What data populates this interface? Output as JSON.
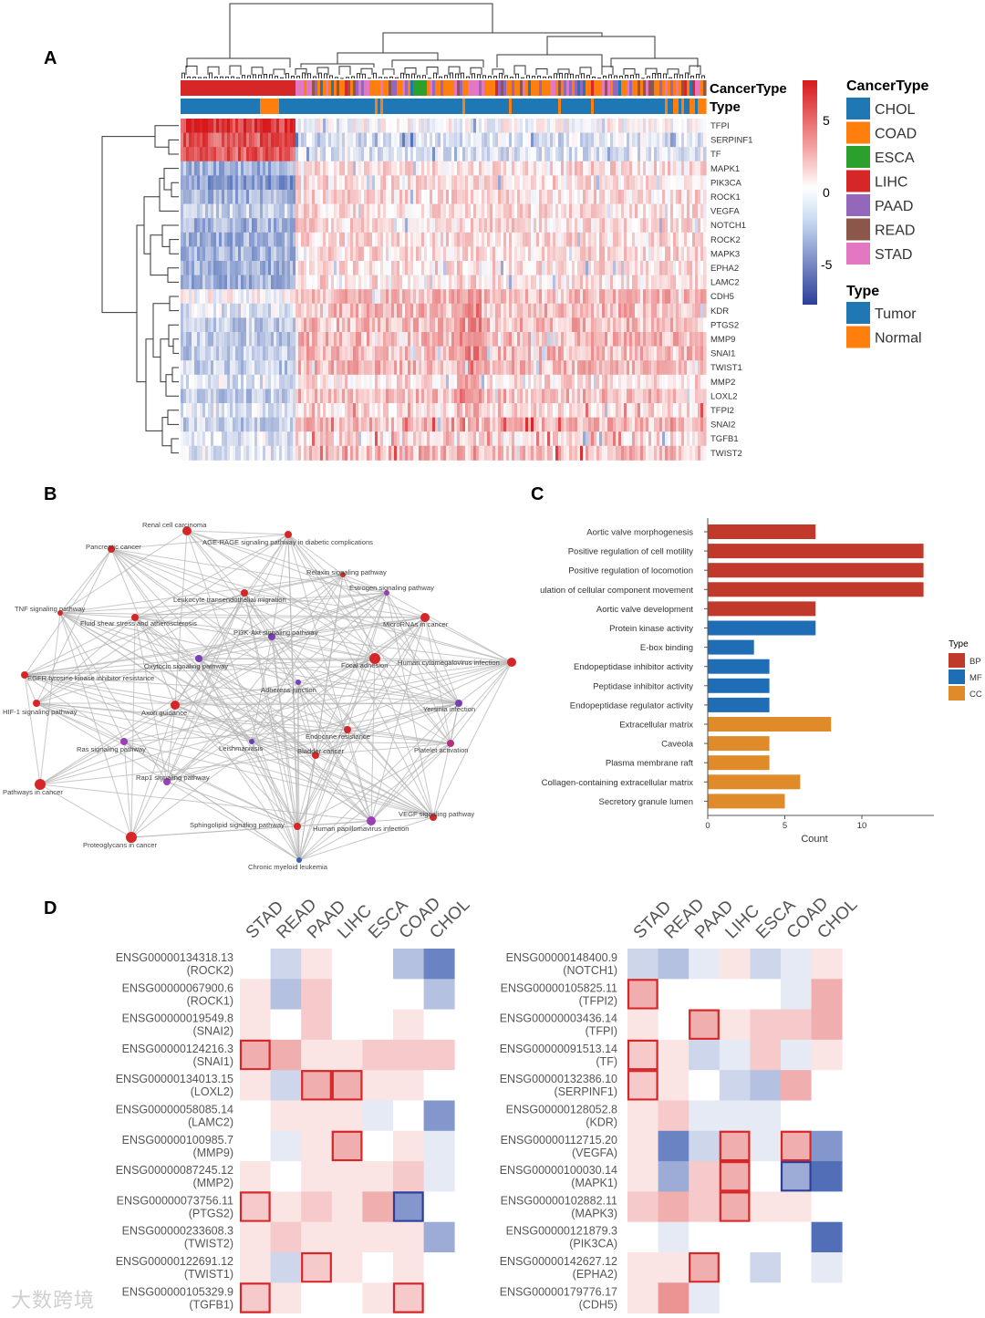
{
  "panels": {
    "A": "A",
    "B": "B",
    "C": "C",
    "D": "D"
  },
  "watermark": "大数跨境",
  "colors": {
    "CHOL": "#1f77b4",
    "COAD": "#ff7f0e",
    "ESCA": "#2ca02c",
    "LIHC": "#d62728",
    "PAAD": "#9467bd",
    "READ": "#8c564b",
    "STAD": "#e377c2",
    "Tumor": "#1f77b4",
    "Normal": "#ff7f0e",
    "BP": "#c0392b",
    "MF": "#1f6db5",
    "CC": "#e08b2a",
    "heat_high": "#d7191c",
    "heat_low": "#2c3e99",
    "edge": "#b5b5b5",
    "hl_red": "#d62728",
    "hl_blue": "#2c3e99"
  },
  "panelA": {
    "annotation_labels": [
      "CancerType",
      "Type"
    ],
    "genes": [
      "TFPI",
      "SERPINF1",
      "TF",
      "MAPK1",
      "PIK3CA",
      "ROCK1",
      "VEGFA",
      "NOTCH1",
      "ROCK2",
      "MAPK3",
      "EPHA2",
      "LAMC2",
      "CDH5",
      "KDR",
      "PTGS2",
      "MMP9",
      "SNAI1",
      "TWIST1",
      "MMP2",
      "LOXL2",
      "TFPI2",
      "SNAI2",
      "TGFB1",
      "TWIST2"
    ],
    "colorbar_ticks": [
      "5",
      "0",
      "-5"
    ],
    "legend_cancer_title": "CancerType",
    "legend_cancer": [
      "CHOL",
      "COAD",
      "ESCA",
      "LIHC",
      "PAAD",
      "READ",
      "STAD"
    ],
    "legend_type_title": "Type",
    "legend_type": [
      "Tumor",
      "Normal"
    ]
  },
  "panelB": {
    "nodes": [
      {
        "label": "Renal cell carcinoma",
        "color": "#d62728"
      },
      {
        "label": "AGE-RAGE signaling pathway in diabetic complications",
        "color": "#d62728"
      },
      {
        "label": "Pancreatic cancer",
        "color": "#d62728"
      },
      {
        "label": "Relaxin signaling pathway",
        "color": "#d62728"
      },
      {
        "label": "Estrogen signaling pathway",
        "color": "#9b3fb5"
      },
      {
        "label": "TNF signaling pathway",
        "color": "#d62728"
      },
      {
        "label": "Leukocyte transendothelial migration",
        "color": "#d62728"
      },
      {
        "label": "Fluid shear stress and atherosclerosis",
        "color": "#d62728"
      },
      {
        "label": "MicroRNAs in cancer",
        "color": "#d62728"
      },
      {
        "label": "PI3K-Akt signaling pathway",
        "color": "#7a3fb5"
      },
      {
        "label": "Oxytocin signaling pathway",
        "color": "#7a3fb5"
      },
      {
        "label": "Focal adhesion",
        "color": "#d62728"
      },
      {
        "label": "Human cytomegalovirus infection",
        "color": "#d62728"
      },
      {
        "label": "EGFR tyrosine kinase inhibitor resistance",
        "color": "#d62728"
      },
      {
        "label": "Adherens junction",
        "color": "#7a3fb5"
      },
      {
        "label": "HIF-1 signaling pathway",
        "color": "#d62728"
      },
      {
        "label": "Axon guidance",
        "color": "#d62728"
      },
      {
        "label": "Yersinia infection",
        "color": "#7a3fb5"
      },
      {
        "label": "Endocrine resistance",
        "color": "#d62728"
      },
      {
        "label": "Ras signaling pathway",
        "color": "#9b3fb5"
      },
      {
        "label": "Leishmaniasis",
        "color": "#6b3fb5"
      },
      {
        "label": "Bladder cancer",
        "color": "#d62728"
      },
      {
        "label": "Platelet activation",
        "color": "#b5307a"
      },
      {
        "label": "Pathways in cancer",
        "color": "#d62728"
      },
      {
        "label": "Rap1 signaling pathway",
        "color": "#9b3fb5"
      },
      {
        "label": "VEGF signaling pathway",
        "color": "#d62728"
      },
      {
        "label": "Sphingolipid signaling pathway",
        "color": "#d62728"
      },
      {
        "label": "Human papillomavirus infection",
        "color": "#9b3fb5"
      },
      {
        "label": "Proteoglycans in cancer",
        "color": "#d62728"
      },
      {
        "label": "Chronic myeloid leukemia",
        "color": "#3f5fb5"
      }
    ]
  },
  "chart_data": [
    {
      "type": "heatmap",
      "title": "Panel A",
      "rows": [
        "TFPI",
        "SERPINF1",
        "TF",
        "MAPK1",
        "PIK3CA",
        "ROCK1",
        "VEGFA",
        "NOTCH1",
        "ROCK2",
        "MAPK3",
        "EPHA2",
        "LAMC2",
        "CDH5",
        "KDR",
        "PTGS2",
        "MMP9",
        "SNAI1",
        "TWIST1",
        "MMP2",
        "LOXL2",
        "TFPI2",
        "SNAI2",
        "TGFB1",
        "TWIST2"
      ],
      "color_range": [
        -7,
        7
      ],
      "group_block_means": {
        "normal_block": [
          6,
          5,
          5,
          -3,
          -4,
          -3,
          -2,
          -3,
          -3,
          -3,
          -3,
          -3,
          0,
          -1,
          -2,
          -2,
          -2,
          -2,
          -1,
          -2,
          -1,
          -2,
          -1,
          -1
        ],
        "tumor_block": [
          0,
          -1,
          -1,
          1,
          1,
          1,
          1,
          1,
          1,
          1,
          1,
          1,
          2,
          2,
          2,
          2,
          2,
          2,
          1,
          2,
          1,
          2,
          1,
          2
        ]
      }
    },
    {
      "type": "bar",
      "title": "Panel C",
      "categories": [
        "Aortic valve morphogenesis",
        "Positive regulation of cell motility",
        "Positive regulation of locomotion",
        "Regulation of cellular component movement",
        "Aortic valve development",
        "Protein kinase activity",
        "E-box binding",
        "Endopeptidase inhibitor activity",
        "Peptidase inhibitor activity",
        "Endopeptidase regulator activity",
        "Extracellular matrix",
        "Caveola",
        "Plasma membrane raft",
        "Collagen-containing extracellular matrix",
        "Secretory granule lumen"
      ],
      "category_display": [
        "Aortic valve morphogenesis",
        "Positive regulation of cell motility",
        "Positive regulation of locomotion",
        "ulation of cellular component movement",
        "Aortic valve development",
        "Protein kinase activity",
        "E-box binding",
        "Endopeptidase inhibitor activity",
        "Peptidase inhibitor activity",
        "Endopeptidase regulator activity",
        "Extracellular matrix",
        "Caveola",
        "Plasma membrane raft",
        "Collagen-containing extracellular matrix",
        "Secretory granule lumen"
      ],
      "values": [
        7,
        14,
        14,
        14,
        7,
        7,
        3,
        4,
        4,
        4,
        8,
        4,
        4,
        6,
        5
      ],
      "groups": [
        "BP",
        "BP",
        "BP",
        "BP",
        "BP",
        "MF",
        "MF",
        "MF",
        "MF",
        "MF",
        "CC",
        "CC",
        "CC",
        "CC",
        "CC"
      ],
      "xlabel": "Count",
      "ylabel": "",
      "xlim": [
        0,
        14.5
      ],
      "xticks": [
        "0",
        "5",
        "10"
      ],
      "legend_title": "Type",
      "legend": [
        "BP",
        "MF",
        "CC"
      ]
    },
    {
      "type": "heatmap",
      "title": "Panel D left",
      "columns": [
        "STAD",
        "READ",
        "PAAD",
        "LIHC",
        "ESCA",
        "COAD",
        "CHOL"
      ],
      "rows": [
        {
          "id": "ENSG00000134318.13",
          "gene": "(ROCK2)",
          "values": [
            0,
            -2,
            1,
            0,
            0,
            -3,
            -6
          ],
          "hl": []
        },
        {
          "id": "ENSG00000067900.6",
          "gene": "(ROCK1)",
          "values": [
            1,
            -3,
            2,
            0,
            0,
            0,
            -3
          ],
          "hl": []
        },
        {
          "id": "ENSG00000019549.8",
          "gene": "(SNAI2)",
          "values": [
            1,
            0,
            2,
            0,
            0,
            1,
            0
          ],
          "hl": []
        },
        {
          "id": "ENSG00000124216.3",
          "gene": "(SNAI1)",
          "values": [
            3,
            3,
            1,
            1,
            2,
            2,
            2
          ],
          "hl": [
            "STAD"
          ]
        },
        {
          "id": "ENSG00000134013.15",
          "gene": "(LOXL2)",
          "values": [
            1,
            -2,
            3,
            3,
            1,
            1,
            0
          ],
          "hl": [
            "PAAD",
            "LIHC"
          ]
        },
        {
          "id": "ENSG00000058085.14",
          "gene": "(LAMC2)",
          "values": [
            0,
            1,
            1,
            1,
            -1,
            0,
            -5
          ],
          "hl": []
        },
        {
          "id": "ENSG00000100985.7",
          "gene": "(MMP9)",
          "values": [
            0,
            -1,
            1,
            3,
            0,
            1,
            -1
          ],
          "hl": [
            "LIHC"
          ]
        },
        {
          "id": "ENSG00000087245.12",
          "gene": "(MMP2)",
          "values": [
            1,
            0,
            1,
            1,
            1,
            2,
            -1
          ],
          "hl": []
        },
        {
          "id": "ENSG00000073756.11",
          "gene": "(PTGS2)",
          "values": [
            2,
            1,
            2,
            1,
            3,
            -5,
            0
          ],
          "hl": [
            "STAD"
          ],
          "hl_blue": [
            "COAD"
          ]
        },
        {
          "id": "ENSG00000233608.3",
          "gene": "(TWIST2)",
          "values": [
            1,
            2,
            1,
            1,
            1,
            1,
            -4
          ],
          "hl": []
        },
        {
          "id": "ENSG00000122691.12",
          "gene": "(TWIST1)",
          "values": [
            1,
            -2,
            2,
            1,
            0,
            1,
            0
          ],
          "hl": [
            "PAAD"
          ]
        },
        {
          "id": "ENSG00000105329.9",
          "gene": "(TGFB1)",
          "values": [
            2,
            1,
            0,
            0,
            1,
            2,
            0
          ],
          "hl": [
            "STAD",
            "COAD"
          ]
        }
      ]
    },
    {
      "type": "heatmap",
      "title": "Panel D right",
      "columns": [
        "STAD",
        "READ",
        "PAAD",
        "LIHC",
        "ESCA",
        "COAD",
        "CHOL"
      ],
      "rows": [
        {
          "id": "ENSG00000148400.9",
          "gene": "(NOTCH1)",
          "values": [
            -2,
            -3,
            -1,
            1,
            -2,
            -1,
            1
          ],
          "hl": []
        },
        {
          "id": "ENSG00000105825.11",
          "gene": "(TFPI2)",
          "values": [
            3,
            0,
            0,
            0,
            0,
            -1,
            3
          ],
          "hl": [
            "STAD"
          ]
        },
        {
          "id": "ENSG00000003436.14",
          "gene": "(TFPI)",
          "values": [
            1,
            0,
            3,
            1,
            2,
            2,
            3
          ],
          "hl": [
            "PAAD"
          ]
        },
        {
          "id": "ENSG00000091513.14",
          "gene": "(TF)",
          "values": [
            2,
            1,
            -2,
            -1,
            2,
            -1,
            1
          ],
          "hl": [
            "STAD"
          ]
        },
        {
          "id": "ENSG00000132386.10",
          "gene": "(SERPINF1)",
          "values": [
            2,
            1,
            0,
            -2,
            -3,
            3,
            0
          ],
          "hl": [
            "STAD"
          ]
        },
        {
          "id": "ENSG00000128052.8",
          "gene": "(KDR)",
          "values": [
            1,
            2,
            -1,
            -1,
            -1,
            0,
            0
          ],
          "hl": []
        },
        {
          "id": "ENSG00000112715.20",
          "gene": "(VEGFA)",
          "values": [
            1,
            -6,
            -2,
            3,
            -1,
            3,
            -5
          ],
          "hl": [
            "LIHC",
            "COAD"
          ]
        },
        {
          "id": "ENSG00000100030.14",
          "gene": "(MAPK1)",
          "values": [
            1,
            -4,
            2,
            3,
            0,
            -4,
            -7
          ],
          "hl": [
            "LIHC"
          ],
          "hl_blue": [
            "COAD"
          ]
        },
        {
          "id": "ENSG00000102882.11",
          "gene": "(MAPK3)",
          "values": [
            2,
            3,
            2,
            3,
            1,
            1,
            0
          ],
          "hl": [
            "LIHC"
          ]
        },
        {
          "id": "ENSG00000121879.3",
          "gene": "(PIK3CA)",
          "values": [
            0,
            -1,
            0,
            0,
            0,
            0,
            -7
          ],
          "hl": []
        },
        {
          "id": "ENSG00000142627.12",
          "gene": "(EPHA2)",
          "values": [
            1,
            1,
            3,
            0,
            -2,
            0,
            -1
          ],
          "hl": [
            "PAAD"
          ]
        },
        {
          "id": "ENSG00000179776.17",
          "gene": "(CDH5)",
          "values": [
            1,
            4,
            -1,
            0,
            0,
            0,
            0
          ],
          "hl": []
        }
      ]
    }
  ]
}
